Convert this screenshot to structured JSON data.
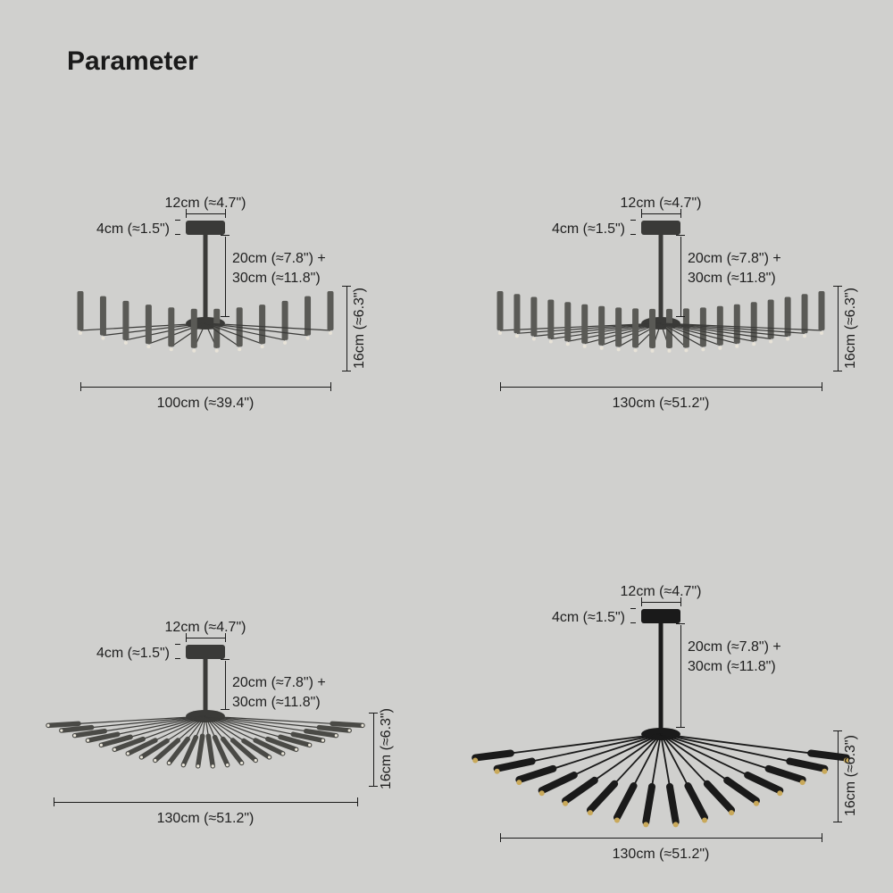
{
  "title": "Parameter",
  "background_color": "#d0d0ce",
  "text_color": "#1a1a1a",
  "title_fontsize": 30,
  "label_fontsize": 16,
  "variants": [
    {
      "id": "variant-100",
      "width_label": "100cm (≈39.4\")",
      "canopy_label": "12cm (≈4.7\")",
      "canopy_h_label": "4cm (≈1.5\")",
      "rod_label_1": "20cm (≈7.8\") +",
      "rod_label_2": "30cm (≈11.8\")",
      "height_label": "16cm (≈6.3\")",
      "svg": {
        "span": 280,
        "arms": 12,
        "tube_up": true,
        "rod_len": 95,
        "color": "#3a3a38",
        "tube_color": "#5a5a56"
      }
    },
    {
      "id": "variant-130a",
      "width_label": "130cm (≈51.2\")",
      "canopy_label": "12cm (≈4.7\")",
      "canopy_h_label": "4cm (≈1.5\")",
      "rod_label_1": "20cm (≈7.8\") +",
      "rod_label_2": "30cm (≈11.8\")",
      "height_label": "16cm (≈6.3\")",
      "svg": {
        "span": 360,
        "arms": 20,
        "tube_up": true,
        "rod_len": 95,
        "color": "#3a3a38",
        "tube_color": "#5a5a56"
      }
    },
    {
      "id": "variant-130b",
      "width_label": "130cm (≈51.2\")",
      "canopy_label": "12cm (≈4.7\")",
      "canopy_h_label": "4cm (≈1.5\")",
      "rod_label_1": "20cm (≈7.8\") +",
      "rod_label_2": "30cm (≈11.8\")",
      "height_label": "16cm (≈6.3\")",
      "svg": {
        "span": 340,
        "arms": 24,
        "tube_up": false,
        "rod_len": 60,
        "color": "#3a3a38",
        "tube_color": "#4a4a46",
        "outward": true
      }
    },
    {
      "id": "variant-130c",
      "width_label": "130cm (≈51.2\")",
      "canopy_label": "12cm (≈4.7\")",
      "canopy_h_label": "4cm (≈1.5\")",
      "rod_label_1": "20cm (≈7.8\") +",
      "rod_label_2": "30cm (≈11.8\")",
      "height_label": "16cm (≈6.3\")",
      "svg": {
        "span": 360,
        "arms": 16,
        "tube_up": false,
        "rod_len": 120,
        "color": "#1a1a1a",
        "tube_color": "#1a1a1a",
        "tip_color": "#c9a95a",
        "down_diag": true
      }
    }
  ]
}
